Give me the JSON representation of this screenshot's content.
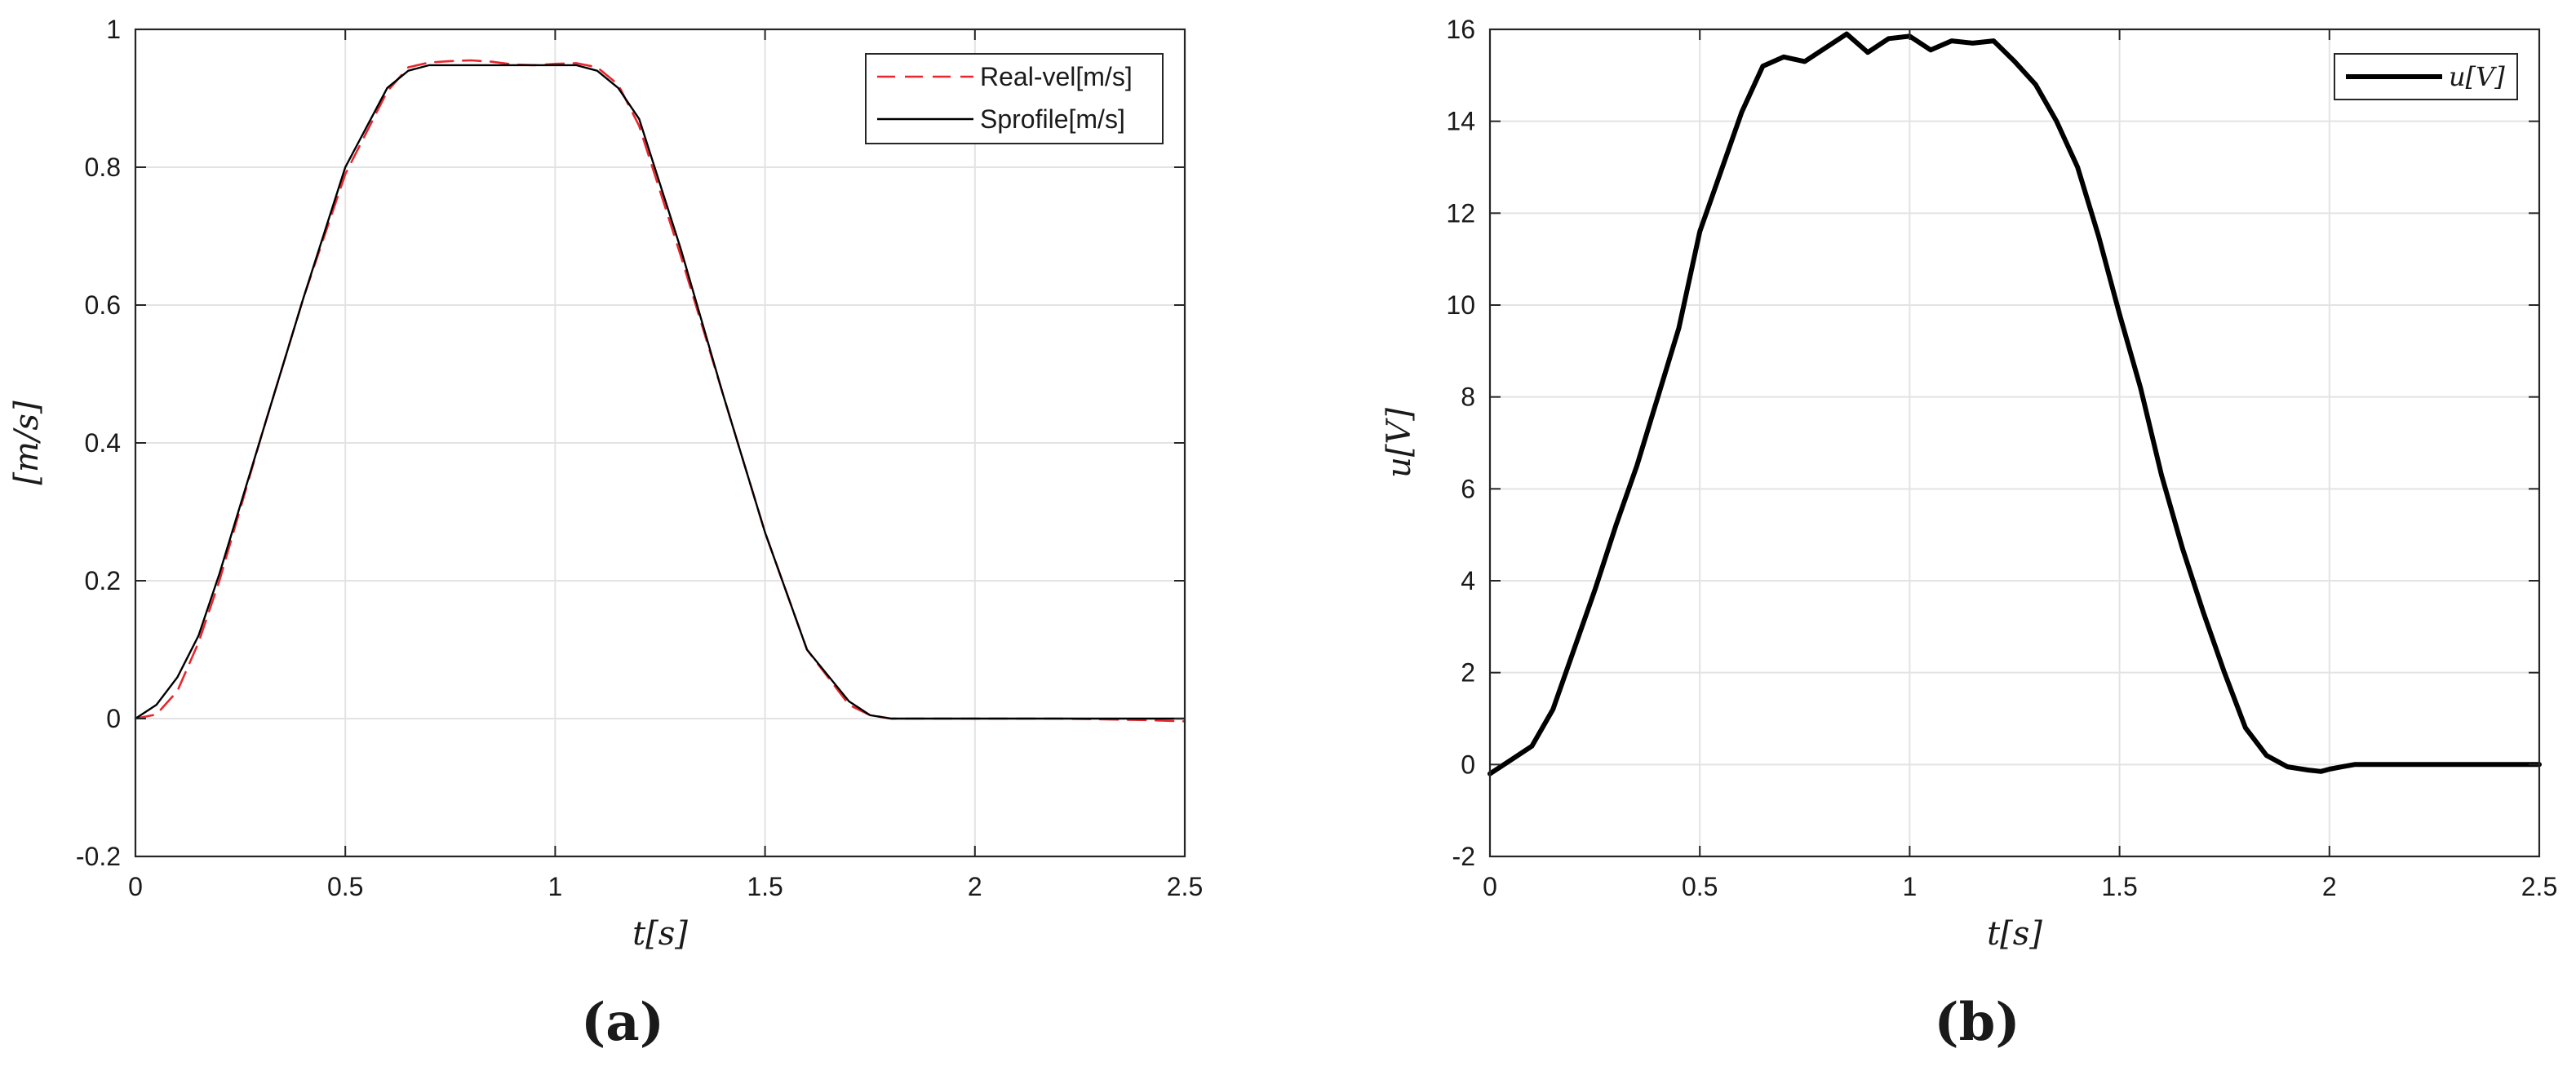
{
  "chart_data": [
    {
      "type": "line",
      "caption": "(a)",
      "xlabel": "t[s]",
      "ylabel": "[m/s]",
      "xlim": [
        0,
        2.5
      ],
      "ylim": [
        -0.2,
        1
      ],
      "xticks": [
        0,
        0.5,
        1,
        1.5,
        2,
        2.5
      ],
      "xtick_labels": [
        "0",
        "0.5",
        "1",
        "1.5",
        "2",
        "2.5"
      ],
      "yticks": [
        -0.2,
        0,
        0.2,
        0.4,
        0.6,
        0.8,
        1
      ],
      "ytick_labels": [
        "-0.2",
        "0",
        "0.2",
        "0.4",
        "0.6",
        "0.8",
        "1"
      ],
      "grid": true,
      "legend_position": "top-right",
      "series": [
        {
          "name": "Real-vel[m/s]",
          "color": "#e8262e",
          "style": "dashed",
          "x": [
            0,
            0.05,
            0.1,
            0.15,
            0.2,
            0.3,
            0.4,
            0.5,
            0.6,
            0.65,
            0.7,
            0.75,
            0.8,
            0.85,
            0.9,
            0.95,
            1.0,
            1.05,
            1.1,
            1.15,
            1.2,
            1.3,
            1.4,
            1.5,
            1.6,
            1.7,
            1.75,
            1.8,
            2.0,
            2.2,
            2.4,
            2.5
          ],
          "y": [
            0.0,
            0.006,
            0.04,
            0.11,
            0.2,
            0.41,
            0.61,
            0.79,
            0.91,
            0.945,
            0.952,
            0.954,
            0.955,
            0.953,
            0.949,
            0.948,
            0.95,
            0.951,
            0.945,
            0.92,
            0.86,
            0.67,
            0.47,
            0.27,
            0.1,
            0.02,
            0.005,
            0.0,
            0.0,
            0.0,
            -0.002,
            -0.004
          ]
        },
        {
          "name": "Sprofile[m/s]",
          "color": "#000000",
          "style": "solid",
          "x": [
            0,
            0.05,
            0.1,
            0.15,
            0.2,
            0.3,
            0.4,
            0.5,
            0.6,
            0.65,
            0.7,
            0.75,
            1.0,
            1.05,
            1.1,
            1.15,
            1.2,
            1.3,
            1.4,
            1.5,
            1.6,
            1.7,
            1.75,
            1.8,
            2.0,
            2.5
          ],
          "y": [
            0.0,
            0.02,
            0.06,
            0.12,
            0.21,
            0.41,
            0.61,
            0.8,
            0.915,
            0.94,
            0.948,
            0.948,
            0.948,
            0.948,
            0.94,
            0.915,
            0.87,
            0.68,
            0.47,
            0.27,
            0.1,
            0.025,
            0.005,
            0.0,
            0.0,
            0.0
          ]
        }
      ]
    },
    {
      "type": "line",
      "caption": "(b)",
      "xlabel": "t[s]",
      "ylabel": "u[V]",
      "xlim": [
        0,
        2.5
      ],
      "ylim": [
        -2,
        16
      ],
      "xticks": [
        0,
        0.5,
        1,
        1.5,
        2,
        2.5
      ],
      "xtick_labels": [
        "0",
        "0.5",
        "1",
        "1.5",
        "2",
        "2.5"
      ],
      "yticks": [
        -2,
        0,
        2,
        4,
        6,
        8,
        10,
        12,
        14,
        16
      ],
      "ytick_labels": [
        "-2",
        "0",
        "2",
        "4",
        "6",
        "8",
        "10",
        "12",
        "14",
        "16"
      ],
      "grid": true,
      "legend_position": "top-right",
      "series": [
        {
          "name": "u[V]",
          "color": "#000000",
          "style": "solid",
          "x": [
            0,
            0.05,
            0.1,
            0.15,
            0.2,
            0.25,
            0.3,
            0.35,
            0.4,
            0.45,
            0.5,
            0.55,
            0.6,
            0.65,
            0.7,
            0.75,
            0.8,
            0.85,
            0.9,
            0.95,
            1.0,
            1.05,
            1.1,
            1.15,
            1.2,
            1.25,
            1.3,
            1.35,
            1.4,
            1.45,
            1.5,
            1.55,
            1.6,
            1.65,
            1.7,
            1.75,
            1.8,
            1.85,
            1.9,
            1.95,
            1.98,
            2.0,
            2.03,
            2.06,
            2.1,
            2.5
          ],
          "y": [
            -0.2,
            0.1,
            0.4,
            1.2,
            2.5,
            3.8,
            5.2,
            6.5,
            8.0,
            9.5,
            11.6,
            12.9,
            14.2,
            15.2,
            15.4,
            15.3,
            15.6,
            15.9,
            15.5,
            15.8,
            15.85,
            15.55,
            15.75,
            15.7,
            15.75,
            15.3,
            14.8,
            14.0,
            13.0,
            11.5,
            9.8,
            8.2,
            6.3,
            4.7,
            3.3,
            2.0,
            0.8,
            0.2,
            -0.05,
            -0.12,
            -0.15,
            -0.1,
            -0.05,
            0.0,
            0.0,
            0.0
          ]
        }
      ]
    }
  ]
}
